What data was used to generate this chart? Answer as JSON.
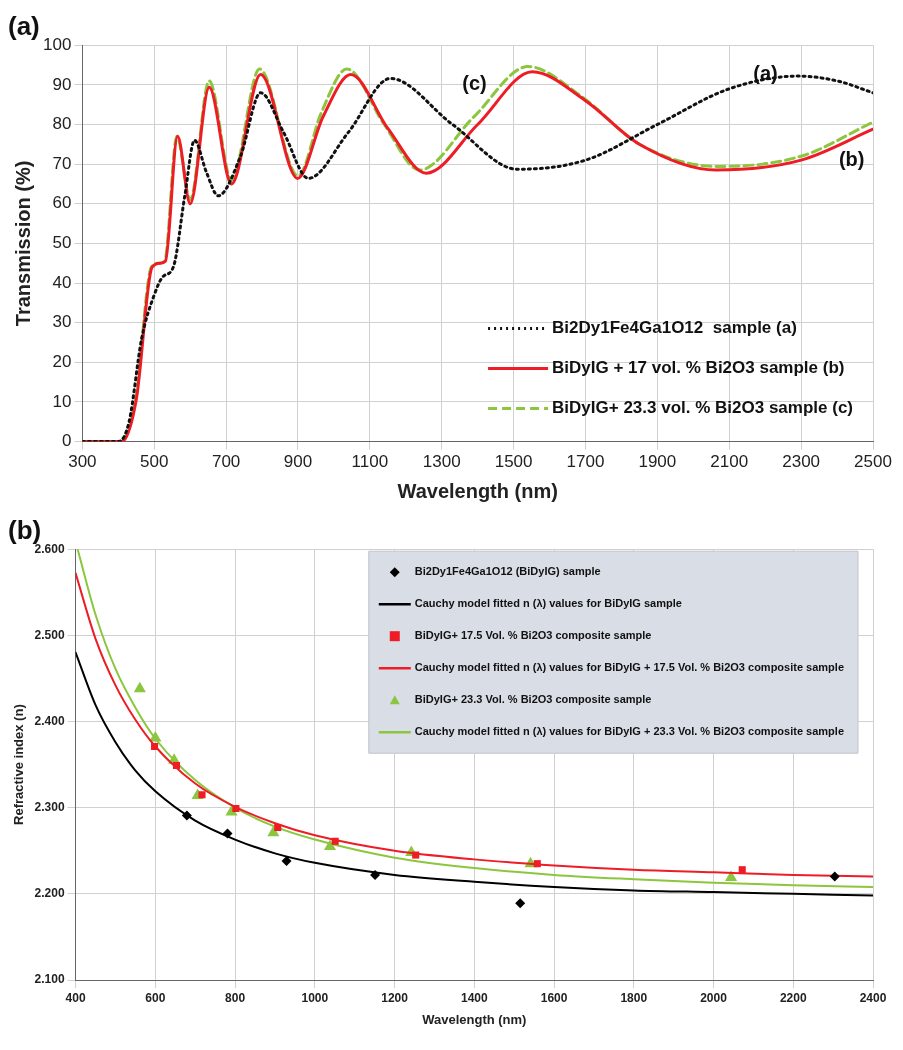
{
  "chart_data": [
    {
      "type": "line",
      "title": "(a)",
      "xlabel": "Wavelength (nm)",
      "ylabel": "Transmission (%)",
      "xlim": [
        300,
        2500
      ],
      "xticks": [
        300,
        500,
        700,
        900,
        1100,
        1300,
        1500,
        1700,
        1900,
        2100,
        2300,
        2500
      ],
      "ylim": [
        0,
        100
      ],
      "yticks": [
        0,
        10,
        20,
        30,
        40,
        50,
        60,
        70,
        80,
        90,
        100
      ],
      "grid": true,
      "legend": "bottom right",
      "marker": "none",
      "annotations": [
        "(a)",
        "(b)",
        "(c)"
      ],
      "series": [
        {
          "name": "Bi2Dy1Fe4Ga1O12  sample (a)",
          "color": "#111111",
          "line_style": "dotted",
          "x": [
            300,
            400,
            430,
            465,
            500,
            524,
            553,
            585,
            612,
            645,
            678,
            740,
            796,
            860,
            929,
            1040,
            1157,
            1330,
            1511,
            1700,
            1900,
            2100,
            2291,
            2400,
            2500
          ],
          "values": [
            0,
            0,
            5,
            26,
            37,
            41.6,
            44,
            62,
            76,
            68,
            62,
            72,
            88,
            78,
            66.4,
            78,
            91.6,
            80,
            68.7,
            71,
            80,
            89,
            92.2,
            91,
            88
          ]
        },
        {
          "name": "BiDyIG + 17 vol. % Bi2O3 sample (b)",
          "color": "#ee1c25",
          "line_style": "solid",
          "x": [
            300,
            410,
            450,
            494,
            516,
            531,
            565,
            600,
            653,
            715,
            796,
            899,
            970,
            1047,
            1150,
            1257,
            1400,
            1552,
            1700,
            1850,
            2063,
            2300,
            2500
          ],
          "values": [
            0,
            0,
            10.6,
            44,
            45,
            45.5,
            77,
            60,
            89.4,
            65,
            92.6,
            66.4,
            82,
            92.6,
            79,
            67.7,
            80,
            93.3,
            86,
            75,
            68.5,
            71,
            78.8
          ]
        },
        {
          "name": "BiDyIG+ 23.3 vol. % Bi2O3 sample (c)",
          "color": "#8cc63f",
          "line_style": "dashed",
          "x": [
            300,
            408,
            448,
            492,
            514,
            529,
            563,
            600,
            653,
            715,
            793,
            900,
            965,
            1036,
            1140,
            1238,
            1390,
            1540,
            1690,
            1850,
            2070,
            2300,
            2500
          ],
          "values": [
            0,
            0,
            10.6,
            44,
            45,
            45.5,
            77,
            61,
            91,
            66,
            94,
            67,
            83,
            94,
            80,
            68.5,
            82,
            94.6,
            87,
            75,
            69.4,
            72,
            80.6
          ]
        }
      ]
    },
    {
      "type": "line",
      "title": "(b)",
      "xlabel": "Wavelength (nm)",
      "ylabel": "Refractive index (n)",
      "xlim": [
        400,
        2400
      ],
      "xticks": [
        400,
        600,
        800,
        1000,
        1200,
        1400,
        1600,
        1800,
        2000,
        2200,
        2400
      ],
      "ylim": [
        2.1,
        2.6
      ],
      "yticks": [
        {
          "value": 2.1,
          "label": "2.100"
        },
        {
          "value": 2.2,
          "label": "2.200"
        },
        {
          "value": 2.3,
          "label": "2.300"
        },
        {
          "value": 2.4,
          "label": "2.400"
        },
        {
          "value": 2.5,
          "label": "2.500"
        },
        {
          "value": 2.6,
          "label": "2.600"
        }
      ],
      "grid": true,
      "legend": "top right",
      "series": [
        {
          "name": "Bi2Dy1Fe4Ga1O12 (BiDyIG) sample",
          "type": "scatter",
          "marker": "diamond",
          "color": "#000000",
          "x": [
            679,
            781,
            929,
            1151,
            1515,
            2304
          ],
          "values": [
            2.291,
            2.27,
            2.238,
            2.222,
            2.189,
            2.22
          ]
        },
        {
          "name": "Cauchy model fitted n (λ) values for BiDyIG sample",
          "marker": "none",
          "color": "#000000",
          "x": [
            400,
            450,
            500,
            550,
            600,
            700,
            800,
            900,
            1000,
            1200,
            1400,
            1600,
            1800,
            2000,
            2200,
            2400
          ],
          "values": [
            2.48,
            2.419,
            2.376,
            2.343,
            2.319,
            2.285,
            2.263,
            2.247,
            2.236,
            2.222,
            2.214,
            2.208,
            2.204,
            2.202,
            2.2,
            2.198
          ]
        },
        {
          "name": "BiDyIG+ 17.5 Vol. % Bi2O3 composite sample",
          "type": "scatter",
          "marker": "square",
          "color": "#ee1c25",
          "x": [
            598,
            653,
            717,
            802,
            907,
            1051,
            1253,
            1558,
            2072
          ],
          "values": [
            2.371,
            2.349,
            2.315,
            2.299,
            2.277,
            2.261,
            2.245,
            2.235,
            2.228
          ]
        },
        {
          "name": "Cauchy model fitted n (λ) values for BiDyIG + 17.5 Vol. % Bi2O3 composite sample",
          "marker": "none",
          "color": "#ee1c25",
          "x": [
            400,
            450,
            500,
            550,
            600,
            700,
            800,
            900,
            1000,
            1200,
            1400,
            1600,
            1800,
            2000,
            2200,
            2400
          ],
          "values": [
            2.572,
            2.496,
            2.442,
            2.402,
            2.371,
            2.328,
            2.301,
            2.282,
            2.268,
            2.25,
            2.24,
            2.233,
            2.228,
            2.225,
            2.222,
            2.22
          ]
        },
        {
          "name": "BiDyIG+ 23.3 Vol. % Bi2O3 composite sample",
          "type": "scatter",
          "marker": "triangle",
          "color": "#8cc63f",
          "x": [
            561,
            600,
            647,
            706,
            791,
            896,
            1038,
            1242,
            1541,
            2044
          ],
          "values": [
            2.438,
            2.381,
            2.355,
            2.314,
            2.295,
            2.271,
            2.255,
            2.248,
            2.235,
            2.219
          ]
        },
        {
          "name": "Cauchy model fitted n (λ) values for BiDyIG + 23.3 Vol. % Bi2O3 composite sample",
          "marker": "none",
          "color": "#8cc63f",
          "x": [
            405,
            450,
            500,
            550,
            600,
            700,
            800,
            900,
            1000,
            1200,
            1400,
            1600,
            1800,
            2000,
            2200,
            2400
          ],
          "values": [
            2.6,
            2.524,
            2.461,
            2.416,
            2.38,
            2.332,
            2.3,
            2.278,
            2.263,
            2.242,
            2.23,
            2.222,
            2.217,
            2.213,
            2.21,
            2.208
          ]
        }
      ]
    }
  ]
}
